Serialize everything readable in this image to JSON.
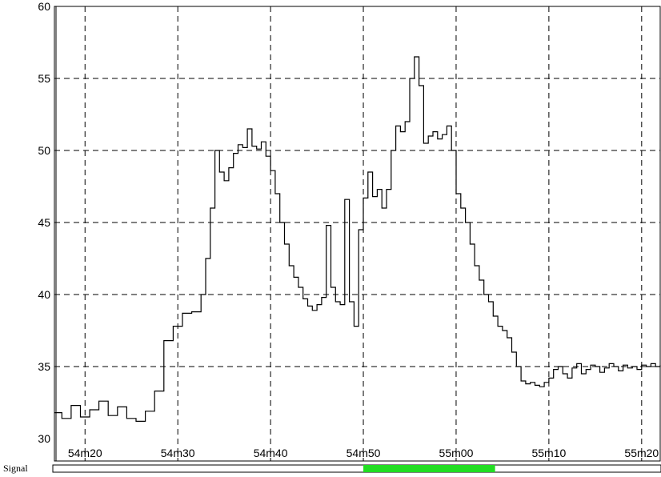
{
  "chart_data": {
    "type": "line",
    "title": "",
    "xlabel": "",
    "ylabel": "",
    "x_unit": "seconds after 54m00",
    "xlim": [
      16.7,
      82.0
    ],
    "ylim": [
      30,
      60
    ],
    "grid": true,
    "line_style": "step",
    "line_color": "#000000",
    "x_ticks": [
      {
        "value": 20,
        "label": "54m20"
      },
      {
        "value": 30,
        "label": "54m30"
      },
      {
        "value": 40,
        "label": "54m40"
      },
      {
        "value": 50,
        "label": "54m50"
      },
      {
        "value": 60,
        "label": "55m00"
      },
      {
        "value": 70,
        "label": "55m10"
      },
      {
        "value": 80,
        "label": "55m20"
      }
    ],
    "y_ticks": [
      30,
      35,
      40,
      45,
      50,
      55,
      60
    ],
    "series": [
      {
        "name": "",
        "x": [
          16.7,
          17.5,
          18.5,
          19.5,
          20.5,
          21.5,
          22.5,
          23.5,
          24.5,
          25.5,
          26.5,
          27.5,
          28.5,
          29.5,
          30.5,
          31.5,
          32.5,
          33.0,
          33.5,
          34.0,
          34.5,
          35.0,
          35.5,
          36.0,
          36.5,
          37.0,
          37.5,
          38.0,
          38.5,
          39.0,
          39.5,
          40.0,
          40.5,
          41.0,
          41.5,
          42.0,
          42.5,
          43.0,
          43.5,
          44.0,
          44.5,
          45.0,
          45.5,
          46.0,
          46.5,
          47.0,
          47.5,
          48.0,
          48.5,
          49.0,
          49.5,
          50.0,
          50.5,
          51.0,
          51.5,
          52.0,
          52.5,
          53.0,
          53.5,
          54.0,
          54.5,
          55.0,
          55.5,
          56.0,
          56.5,
          57.0,
          57.5,
          58.0,
          58.5,
          59.0,
          59.5,
          60.0,
          60.5,
          61.0,
          61.5,
          62.0,
          62.5,
          63.0,
          63.5,
          64.0,
          64.5,
          65.0,
          65.5,
          66.0,
          66.5,
          67.0,
          67.5,
          68.0,
          68.5,
          69.0,
          69.5,
          70.0,
          70.5,
          71.0,
          71.5,
          72.0,
          72.5,
          73.0,
          73.5,
          74.0,
          74.5,
          75.0,
          75.5,
          76.0,
          76.5,
          77.0,
          77.5,
          78.0,
          78.5,
          79.0,
          79.5,
          80.0,
          80.5,
          81.0,
          81.5,
          82.0
        ],
        "y": [
          31.8,
          31.4,
          32.3,
          31.5,
          32.0,
          32.6,
          31.6,
          32.2,
          31.4,
          31.2,
          31.9,
          33.3,
          36.8,
          37.8,
          38.7,
          38.8,
          40.0,
          42.5,
          46.0,
          50.0,
          48.5,
          47.9,
          48.8,
          49.8,
          50.4,
          50.2,
          51.5,
          50.3,
          50.1,
          50.6,
          49.6,
          48.6,
          47.0,
          45.0,
          43.5,
          42.0,
          41.2,
          40.5,
          39.7,
          39.2,
          38.9,
          39.3,
          39.8,
          44.8,
          40.5,
          39.5,
          39.3,
          46.6,
          39.5,
          37.8,
          44.5,
          46.7,
          48.5,
          46.8,
          47.3,
          46.0,
          47.3,
          50.0,
          51.7,
          51.3,
          52.0,
          55.0,
          56.5,
          54.5,
          50.5,
          51.0,
          51.3,
          50.8,
          51.1,
          51.7,
          50.0,
          47.0,
          46.0,
          45.0,
          43.5,
          42.0,
          41.0,
          40.0,
          39.5,
          38.5,
          37.8,
          37.5,
          37.0,
          36.0,
          35.0,
          34.0,
          33.8,
          33.9,
          33.7,
          33.6,
          33.9,
          34.2,
          34.8,
          35.0,
          34.5,
          34.2,
          34.9,
          35.2,
          34.5,
          34.8,
          35.1,
          35.0,
          34.6,
          34.9,
          35.2,
          35.0,
          34.7,
          35.1,
          34.9,
          35.0,
          34.8,
          35.1,
          35.0,
          35.2,
          35.0,
          35.1
        ]
      }
    ],
    "signal_bar": {
      "label": "Signal",
      "segments": [
        {
          "start": 50.0,
          "end": 64.2,
          "color": "#22dd22"
        }
      ]
    }
  }
}
